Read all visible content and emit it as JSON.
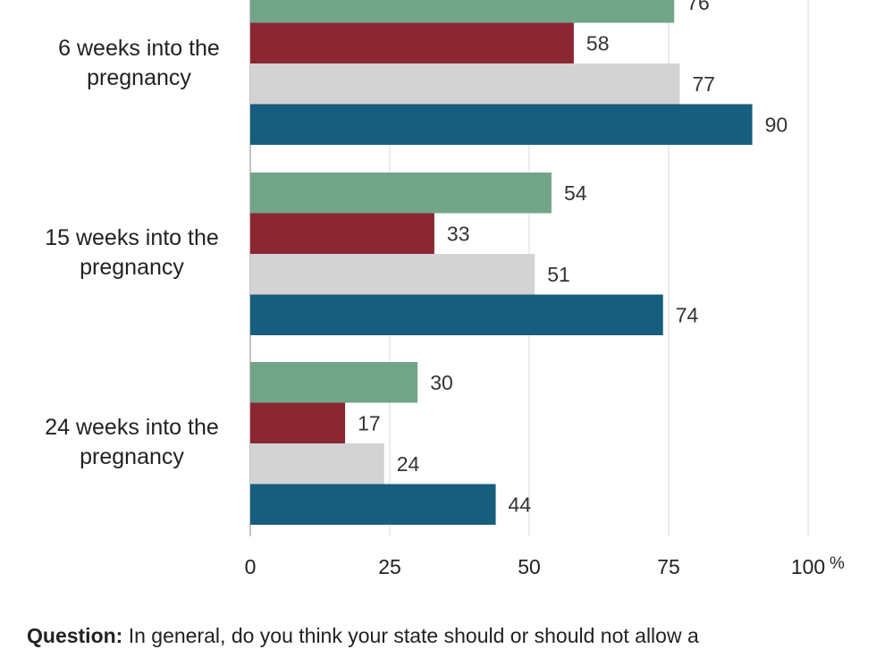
{
  "chart_data": {
    "type": "bar",
    "orientation": "horizontal",
    "categories": [
      "6 weeks into the pregnancy",
      "15 weeks into the pregnancy",
      "24 weeks into the pregnancy"
    ],
    "series": [
      {
        "color": "#72a588",
        "values": [
          76,
          54,
          30
        ]
      },
      {
        "color": "#8b2633",
        "values": [
          58,
          33,
          17
        ]
      },
      {
        "color": "#d3d3d3",
        "values": [
          77,
          51,
          24
        ]
      },
      {
        "color": "#175d7e",
        "values": [
          90,
          74,
          44
        ]
      }
    ],
    "xlim": [
      0,
      100
    ],
    "x_ticks": [
      "0",
      "25",
      "50",
      "75",
      "100"
    ],
    "x_unit": "%",
    "grid": true
  },
  "question": {
    "label": "Question:",
    "text": "In general, do you think your state should or should not allow a"
  }
}
